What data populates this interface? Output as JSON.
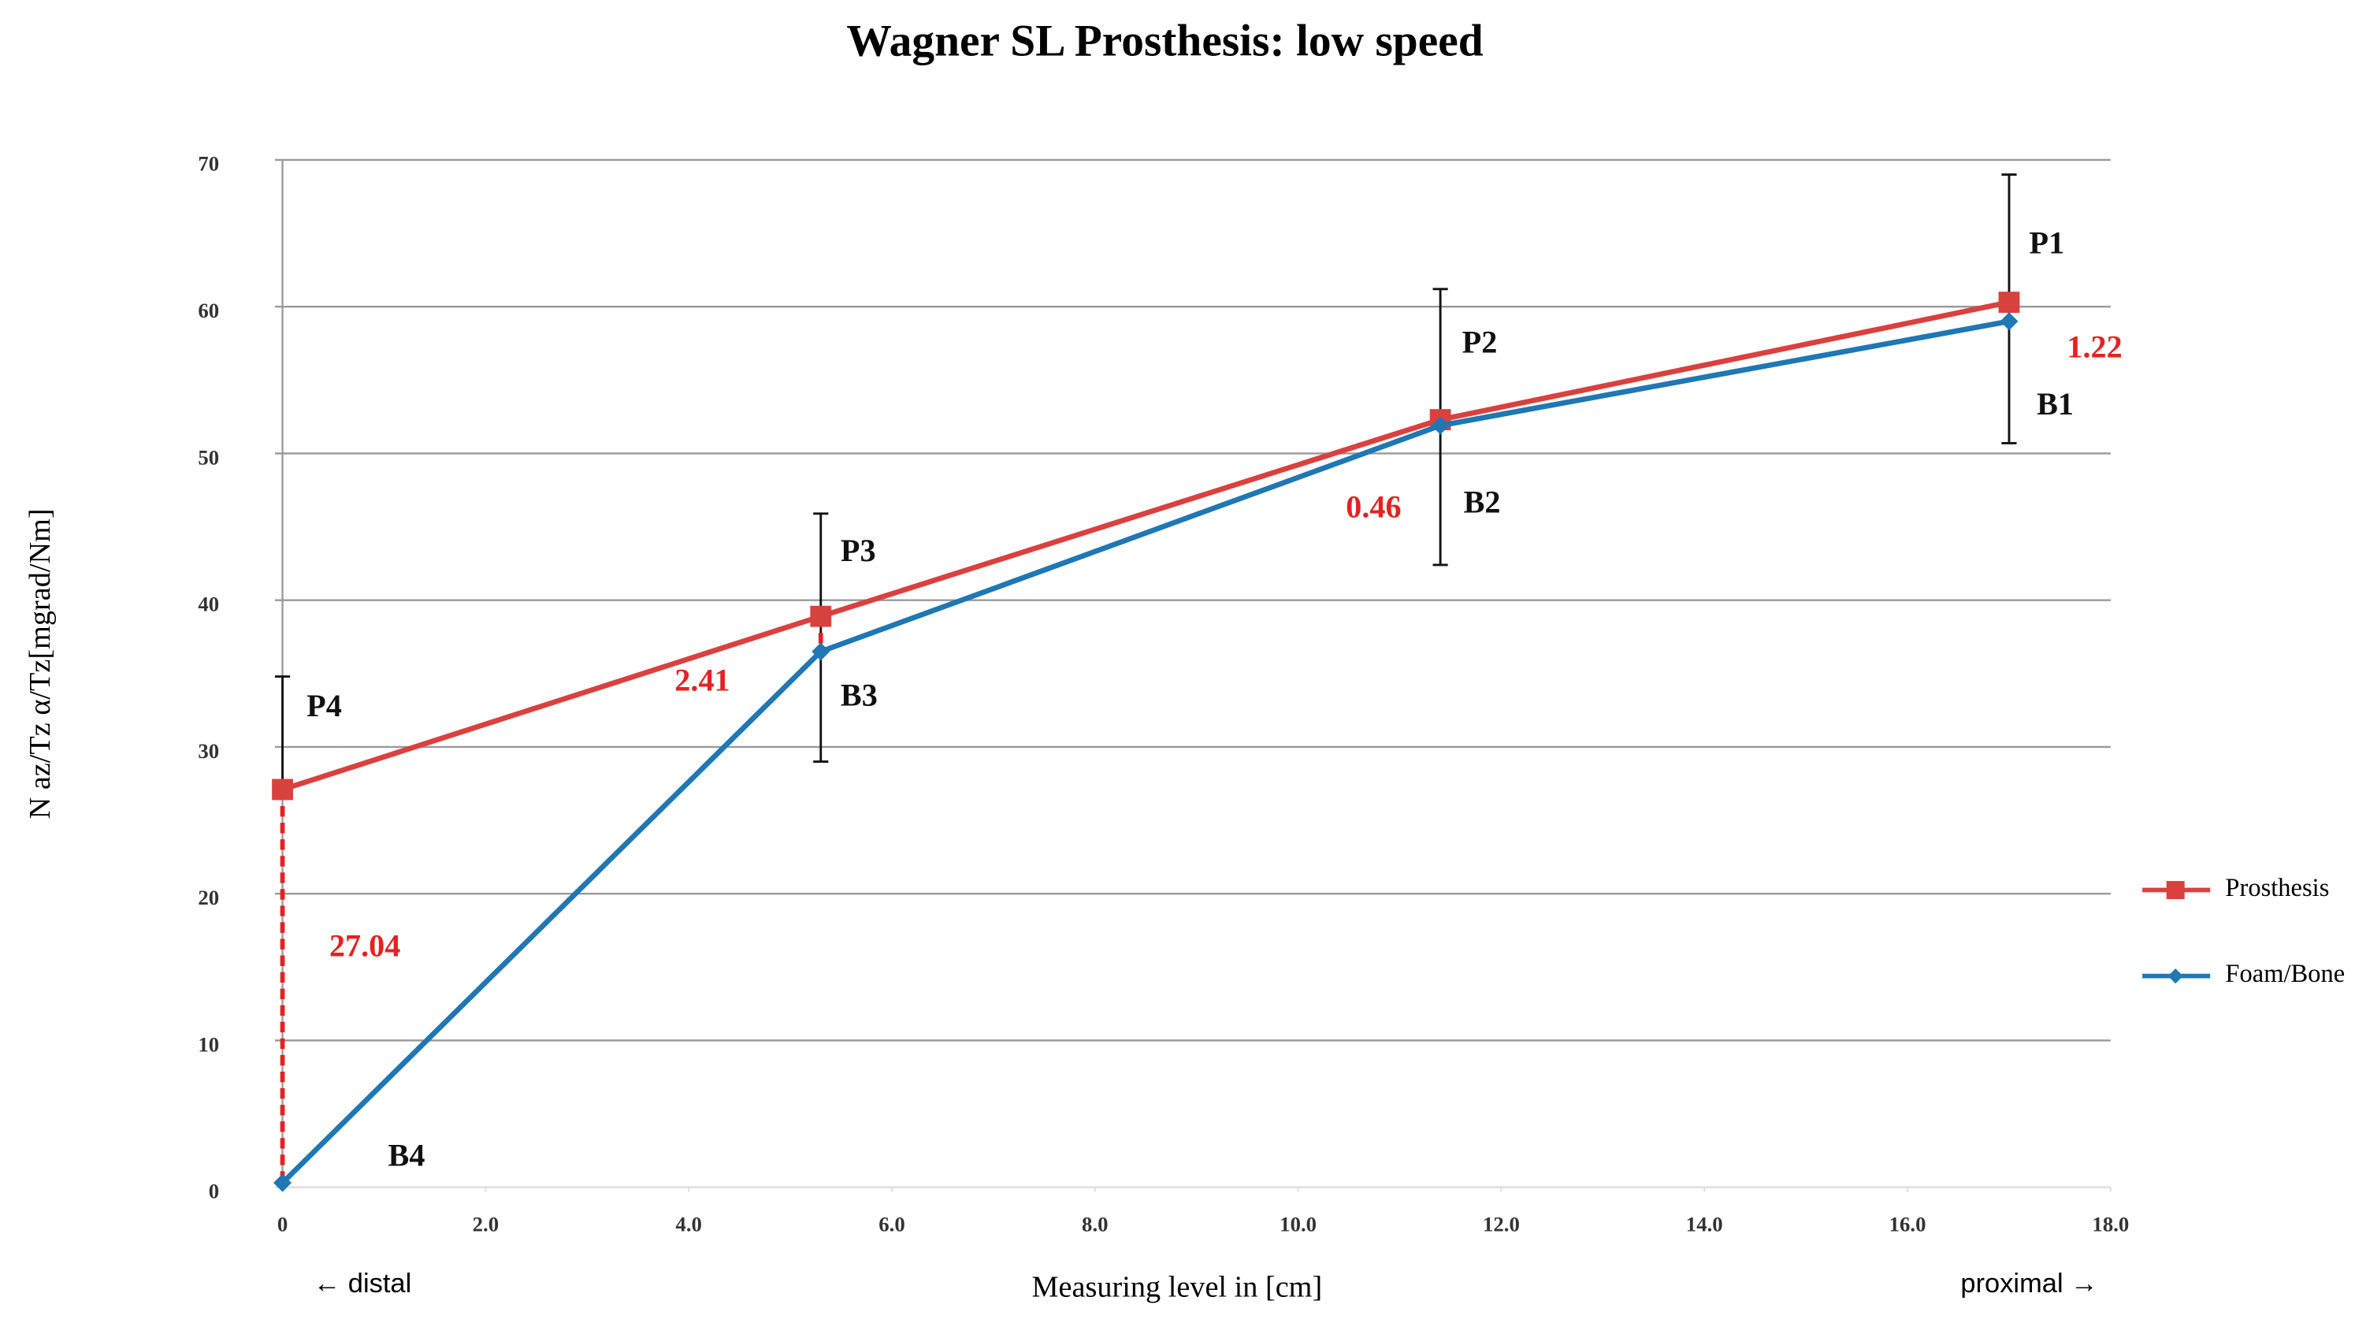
{
  "chart_data": {
    "type": "line",
    "title": "Wagner SL Prosthesis: low speed",
    "x_label": "Measuring level in [cm]",
    "y_label": "N az/Tz α/Tz[mgrad/Nm]",
    "x_left_note": "← distal",
    "x_right_note": "proximal →",
    "xlim": [
      0,
      18
    ],
    "ylim": [
      0,
      70
    ],
    "xticks": [
      0,
      {
        "value": 2,
        "label": "2.0"
      },
      {
        "value": 4,
        "label": "4.0"
      },
      {
        "value": 6,
        "label": "6.0"
      },
      {
        "value": 8,
        "label": "8.0"
      },
      {
        "value": 10,
        "label": "10.0"
      },
      {
        "value": 12,
        "label": "12.0"
      },
      {
        "value": 14,
        "label": "14.0"
      },
      {
        "value": 16,
        "label": "16.0"
      },
      {
        "value": 18,
        "label": "18.0"
      }
    ],
    "yticks": [
      0,
      10,
      20,
      30,
      40,
      50,
      60,
      70
    ],
    "grid": true,
    "legend": "right",
    "series": [
      {
        "name": "Prosthesis",
        "color": "#d9413f",
        "x": [
          0,
          5.3,
          11.4,
          17.0
        ],
        "values": [
          27.1,
          38.9,
          52.3,
          60.3
        ]
      },
      {
        "name": "Foam/Bone",
        "color": "#1f77b4",
        "x": [
          0,
          5.3,
          11.4,
          17.0
        ],
        "values": [
          0.3,
          36.5,
          51.9,
          59.0
        ]
      }
    ],
    "error_bars": [
      {
        "x": 17.0,
        "low": 50.7,
        "high": 69.0
      },
      {
        "x": 11.4,
        "low": 42.4,
        "high": 61.2
      },
      {
        "x": 5.3,
        "low": 29.0,
        "high": 45.9
      },
      {
        "x": 0,
        "low": 27.1,
        "high": 34.8
      }
    ],
    "annotations": [
      "P1",
      "P2",
      "P3",
      "P4",
      "B1",
      "B2",
      "B3",
      "B4",
      "1.22",
      "0.46",
      "2.41",
      "27.04"
    ]
  }
}
